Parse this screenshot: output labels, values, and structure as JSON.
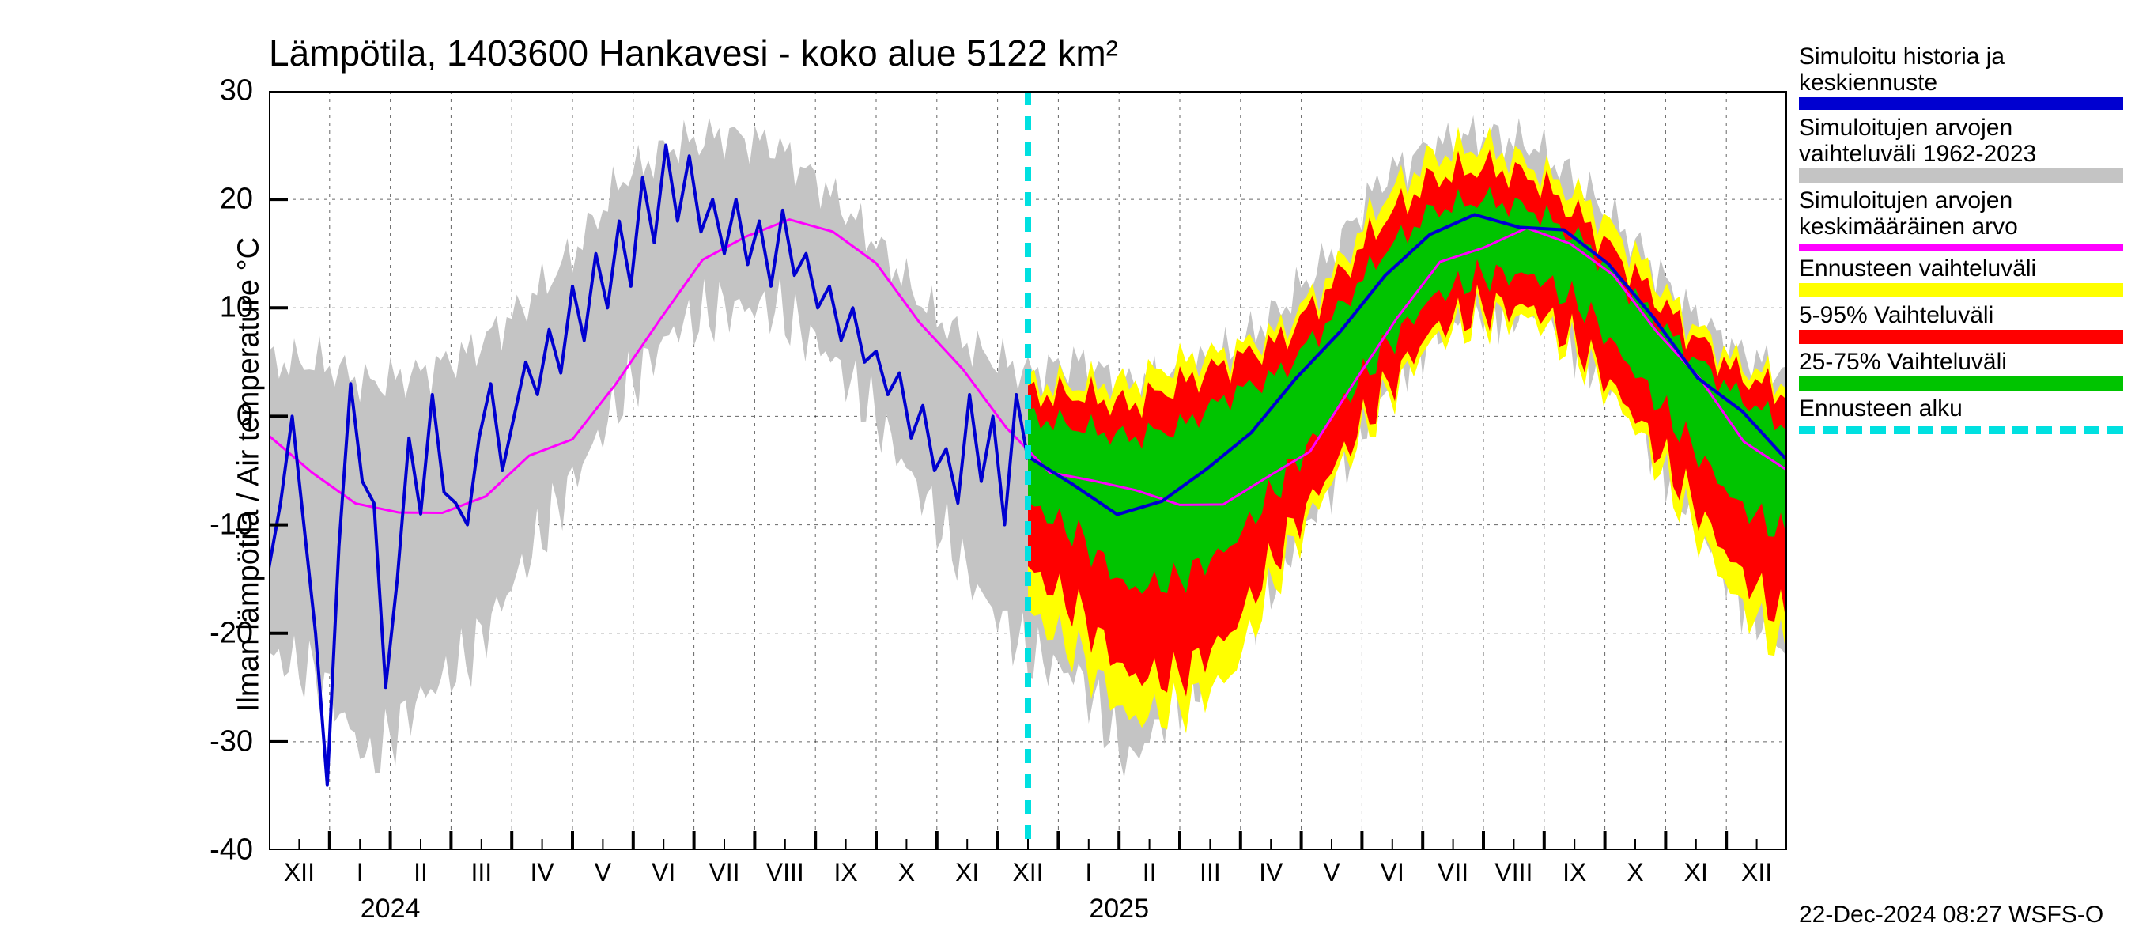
{
  "chart": {
    "title": "Lämpötila, 1403600 Hankavesi - koko alue 5122 km²",
    "ylabel": "Ilman lämpötila / Air temperature    °C",
    "footer": "22-Dec-2024 08:27 WSFS-O",
    "background_color": "#ffffff",
    "grid_color": "#000000",
    "grid_dash": "4,6",
    "axis_color": "#000000",
    "title_fontsize": 46,
    "ylabel_fontsize": 38,
    "tick_fontsize": 38,
    "xtick_fontsize": 32,
    "footer_fontsize": 30,
    "ylim": [
      -40,
      30
    ],
    "yticks": [
      -40,
      -30,
      -20,
      -10,
      0,
      10,
      20,
      30
    ],
    "xticks": {
      "count": 26,
      "labels": [
        "XII",
        "I",
        "II",
        "III",
        "IV",
        "V",
        "VI",
        "VII",
        "VIII",
        "IX",
        "X",
        "XI",
        "XII",
        "I",
        "II",
        "III",
        "IV",
        "V",
        "VI",
        "VII",
        "VIII",
        "IX",
        "X",
        "XI",
        "XII",
        ""
      ],
      "year_labels": [
        {
          "at_index": 1.5,
          "text": "2024"
        },
        {
          "at_index": 13.5,
          "text": "2025"
        }
      ]
    },
    "forecast_start_index": 12.5,
    "colors": {
      "gray_band": "#c4c4c4",
      "yellow_band": "#ffff00",
      "red_band": "#ff0000",
      "green_band": "#00c400",
      "blue_line": "#0000d0",
      "magenta_line": "#ff00ff",
      "cyan_line": "#00e0e0"
    },
    "line_widths": {
      "blue": 4,
      "magenta": 3,
      "cyan": 8
    },
    "legend": [
      {
        "text": "Simuloitu historia ja keskiennuste",
        "color_key": "blue_line",
        "style": "line"
      },
      {
        "text": "Simuloitujen arvojen vaihteluväli 1962-2023",
        "color_key": "gray_band",
        "style": "band"
      },
      {
        "text": "Simuloitujen arvojen keskimääräinen arvo",
        "color_key": "magenta_line",
        "style": "thin"
      },
      {
        "text": "Ennusteen vaihteluväli",
        "color_key": "yellow_band",
        "style": "band"
      },
      {
        "text": "5-95% Vaihteluväli",
        "color_key": "red_band",
        "style": "band"
      },
      {
        "text": "25-75% Vaihteluväli",
        "color_key": "green_band",
        "style": "band"
      },
      {
        "text": "Ennusteen alku",
        "color_key": "cyan_line",
        "style": "dashed"
      }
    ],
    "series": {
      "gray_upper": [
        5,
        5,
        3,
        4,
        6,
        10,
        15,
        22,
        25,
        26,
        25,
        21,
        16,
        10,
        6,
        4,
        5,
        3,
        4,
        6,
        10,
        15,
        22,
        25,
        26,
        25,
        21,
        16,
        10,
        6,
        4
      ],
      "gray_lower": [
        -22,
        -24,
        -32,
        -26,
        -22,
        -14,
        -6,
        2,
        8,
        10,
        10,
        6,
        0,
        -8,
        -16,
        -22,
        -24,
        -32,
        -26,
        -22,
        -14,
        -6,
        2,
        8,
        10,
        10,
        6,
        0,
        -8,
        -16,
        -22
      ],
      "yellow_upper": [
        3,
        3,
        3,
        5,
        6,
        8,
        13,
        20,
        24,
        25,
        23,
        20,
        15,
        9,
        5,
        3
      ],
      "yellow_lower": [
        -18,
        -22,
        -28,
        -27,
        -24,
        -14,
        -6,
        1,
        7,
        9,
        9,
        5,
        -1,
        -9,
        -17,
        -22
      ],
      "red_upper": [
        2,
        2,
        1,
        3,
        5,
        7,
        12,
        18,
        22,
        23,
        22,
        18,
        13,
        8,
        4,
        2
      ],
      "red_lower": [
        -14,
        -18,
        -24,
        -24,
        -20,
        -12,
        -5,
        2,
        8,
        10,
        10,
        6,
        0,
        -7,
        -14,
        -19
      ],
      "green_upper": [
        0,
        -1,
        -2,
        -1,
        2,
        4,
        9,
        15,
        19,
        20,
        19,
        16,
        11,
        6,
        2,
        -1
      ],
      "green_lower": [
        -8,
        -11,
        -16,
        -15,
        -12,
        -6,
        0,
        6,
        11,
        13,
        13,
        10,
        4,
        -2,
        -8,
        -11
      ],
      "magenta": [
        -2,
        -5,
        -8,
        -9,
        -9,
        -7,
        -4,
        -2,
        3,
        9,
        14,
        17,
        18,
        17,
        14,
        9,
        4,
        -1,
        -5,
        -6,
        -7,
        -8,
        -8,
        -6,
        -3,
        3,
        9,
        14,
        16,
        17,
        16,
        13,
        8,
        3,
        -2,
        -5
      ],
      "blue_hist": [
        -14,
        -8,
        0,
        -10,
        -20,
        -34,
        -12,
        3,
        -6,
        -8,
        -25,
        -15,
        -2,
        -9,
        2,
        -7,
        -8,
        -10,
        -2,
        3,
        -5,
        0,
        5,
        2,
        8,
        4,
        12,
        7,
        15,
        10,
        18,
        12,
        22,
        16,
        25,
        18,
        24,
        17,
        20,
        15,
        20,
        14,
        18,
        12,
        19,
        13,
        15,
        10,
        12,
        7,
        10,
        5,
        6,
        2,
        4,
        -2,
        1,
        -5,
        -3,
        -8,
        2,
        -6,
        0,
        -10,
        2,
        -4
      ],
      "blue_fore": [
        -4,
        -6,
        -9,
        -8,
        -5,
        -1,
        3,
        8,
        13,
        17,
        18,
        18,
        17,
        14,
        9,
        4,
        0,
        -4
      ]
    }
  }
}
